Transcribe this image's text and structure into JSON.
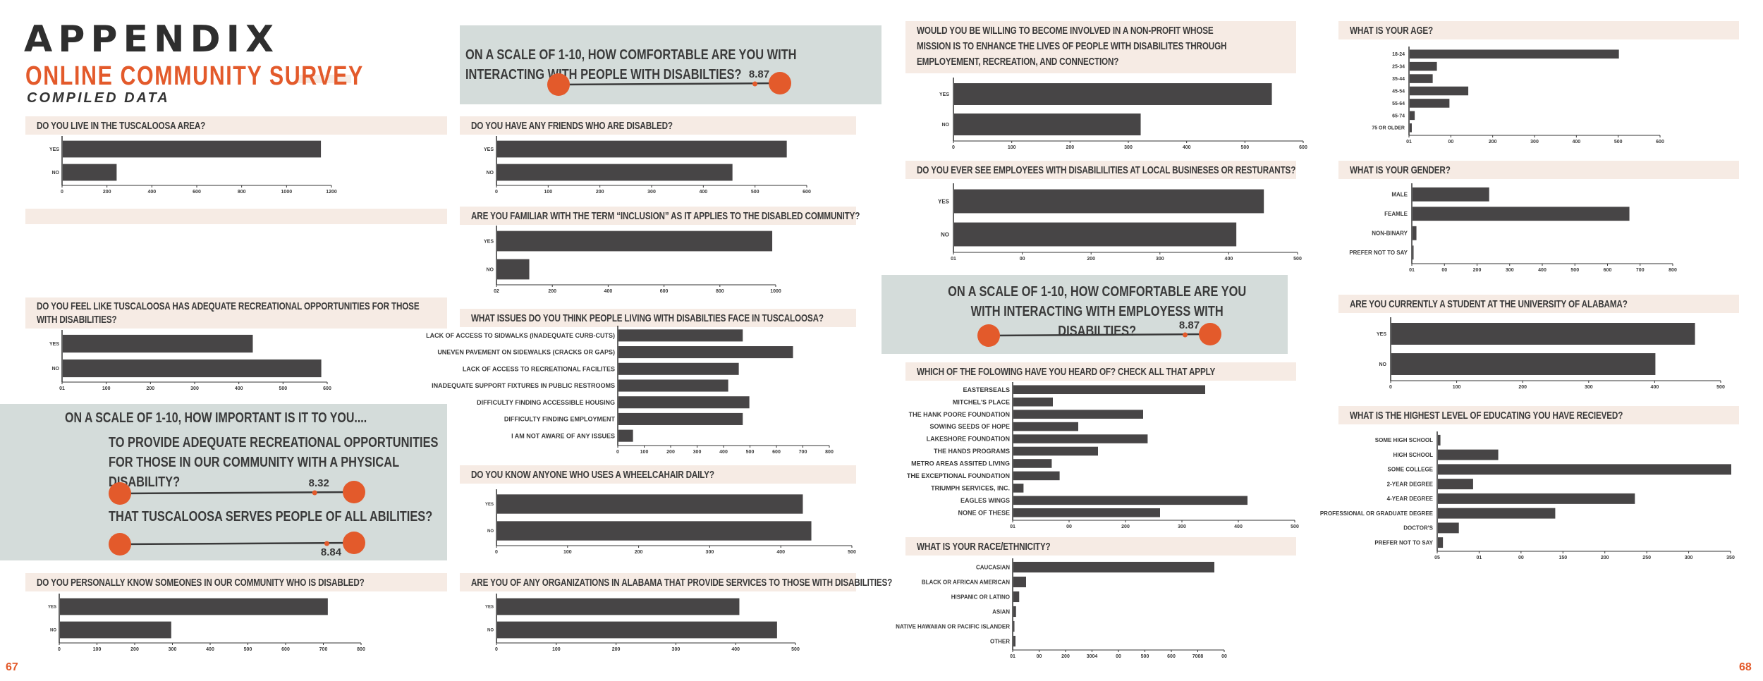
{
  "header": {
    "title": "APPENDIX",
    "subtitle": "ONLINE COMMUNITY SURVEY",
    "compiled": "COMPILED DATA"
  },
  "pages": {
    "left": "67",
    "right": "68"
  },
  "colors": {
    "accent": "#e35a2b",
    "bar": "#474546",
    "band": "#f6ebe4",
    "panel": "#d4dcda"
  },
  "scales": {
    "people_disabilities": {
      "question": "ON A SCALE OF 1-10, HOW COMFORTABLE ARE YOU WITH INTERACTING WITH PEOPLE WITH DISABILTIES?",
      "value": "8.87",
      "fraction": 0.887
    },
    "importance": {
      "heading": "ON A SCALE OF 1-10, HOW IMPORTANT IS IT TO YOU....",
      "q1": "TO PROVIDE ADEQUATE RECREATIONAL OPPORTUNITIES FOR THOSE IN OUR COMMUNITY WITH A PHYSICAL DISABILITY?",
      "v1": "8.32",
      "f1": 0.832,
      "q2": "THAT TUSCALOOSA SERVES PEOPLE OF ALL ABILITIES?",
      "v2": "8.84",
      "f2": 0.884
    },
    "employees": {
      "question": "ON A SCALE OF 1-10, HOW COMFORTABLE ARE YOU WITH INTERACTING WITH EMPLOYESS WITH DISABILTIES?",
      "value": "8.87",
      "fraction": 0.887
    }
  },
  "chart_data": [
    {
      "id": "tuscaloosa",
      "type": "bar",
      "title": "DO YOU LIVE IN THE TUSCALOOSA AREA?",
      "categories": [
        "YES",
        "NO"
      ],
      "values": [
        1150,
        240
      ],
      "xlim": [
        0,
        1200
      ],
      "ticks": [
        "0",
        "200",
        "400",
        "600",
        "800",
        "1000",
        "1200"
      ]
    },
    {
      "id": "friends",
      "type": "bar",
      "title": "DO YOU HAVE ANY FRIENDS WHO ARE DISABLED?",
      "categories": [
        "YES",
        "NO"
      ],
      "values": [
        560,
        455
      ],
      "xlim": [
        0,
        600
      ],
      "ticks": [
        "0",
        "100",
        "200",
        "300",
        "400",
        "500",
        "600"
      ]
    },
    {
      "id": "inclusion",
      "type": "bar",
      "title": "ARE YOU FAMILIAR WITH THE TERM  “INCLUSION” AS IT APPLIES TO THE DISABLED COMMUNITY?",
      "categories": [
        "YES",
        "NO"
      ],
      "values": [
        985,
        115
      ],
      "xlim": [
        0,
        1000
      ],
      "ticks": [
        "02",
        "200",
        "400",
        "600",
        "800",
        "1000"
      ]
    },
    {
      "id": "recreation",
      "type": "bar",
      "title": "DO YOU FEEL LIKE TUSCALOOSA HAS ADEQUATE RECREATIONAL OPPORTUNITIES FOR THOSE WITH DISABILITIES?",
      "categories": [
        "YES",
        "NO"
      ],
      "values": [
        430,
        585
      ],
      "xlim": [
        0,
        600
      ],
      "ticks": [
        "01",
        "100",
        "200",
        "300",
        "400",
        "500",
        "600"
      ]
    },
    {
      "id": "issues",
      "type": "bar",
      "title": "WHAT ISSUES DO YOU THINK PEOPLE LIVING WITH DISABILTIES FACE IN TUSCALOOSA?",
      "categories": [
        "LACK OF ACCESS TO SIDWALKS (INADEQUATE CURB-CUTS)",
        "UNEVEN PAVEMENT ON SIDEWALKS (CRACKS OR GAPS)",
        "LACK OF ACCESS TO RECREATIONAL FACILITES",
        "INADEQUATE SUPPORT FIXTURES IN PUBLIC RESTROOMS",
        "DIFFICULTY FINDING ACCESSIBLE HOUSING",
        "DIFFICULTY FINDING EMPLOYMENT",
        "I AM NOT AWARE OF ANY ISSUES"
      ],
      "values": [
        470,
        660,
        455,
        415,
        495,
        470,
        55
      ],
      "xlim": [
        0,
        800
      ],
      "ticks": [
        "0",
        "100",
        "200",
        "300",
        "400",
        "500",
        "600",
        "700",
        "800"
      ]
    },
    {
      "id": "wheelchair",
      "type": "bar",
      "title": "DO YOU KNOW ANYONE WHO USES A WHEELCAHAIR DAILY?",
      "categories": [
        "YES",
        "NO"
      ],
      "values": [
        430,
        442
      ],
      "xlim": [
        0,
        500
      ],
      "ticks": [
        "0",
        "100",
        "200",
        "300",
        "400",
        "500"
      ]
    },
    {
      "id": "know_disabled",
      "type": "bar",
      "title": "DO YOU PERSONALLY KNOW SOMEONES IN OUR COMMUNITY WHO IS DISABLED?",
      "categories": [
        "YES",
        "NO"
      ],
      "values": [
        710,
        295
      ],
      "xlim": [
        0,
        800
      ],
      "ticks": [
        "0",
        "100",
        "200",
        "300",
        "400",
        "500",
        "600",
        "700",
        "800"
      ]
    },
    {
      "id": "organizations",
      "type": "bar",
      "title": "ARE YOU OF ANY ORGANIZATIONS IN ALABAMA THAT PROVIDE SERVICES TO THOSE WITH DISABILITIES?",
      "categories": [
        "YES",
        "NO"
      ],
      "values": [
        405,
        468
      ],
      "xlim": [
        0,
        500
      ],
      "ticks": [
        "0",
        "100",
        "200",
        "300",
        "400",
        "500"
      ]
    },
    {
      "id": "nonprofit",
      "type": "bar",
      "title": "WOULD YOU BE WILLING TO BECOME INVOLVED IN A NON-PROFIT WHOSE MISSION IS TO ENHANCE THE LIVES OF PEOPLE WITH DISABILITES THROUGH EMPLOYEMENT, RECREATION, AND CONNECTION?",
      "categories": [
        "YES",
        "NO"
      ],
      "values": [
        545,
        320
      ],
      "xlim": [
        0,
        600
      ],
      "ticks": [
        "0",
        "100",
        "200",
        "300",
        "400",
        "500",
        "600"
      ]
    },
    {
      "id": "employees_local",
      "type": "bar",
      "title": "DO YOU EVER SEE EMPLOYEES WITH DISABILILITIES AT LOCAL BUSINESES OR RESTURANTS?",
      "categories": [
        "YES",
        "NO"
      ],
      "values": [
        450,
        410
      ],
      "xlim": [
        0,
        500
      ],
      "ticks": [
        "01",
        "00",
        "200",
        "300",
        "400",
        "500"
      ]
    },
    {
      "id": "heard_of",
      "type": "bar",
      "title": "WHICH OF THE FOLOWING HAVE YOU HEARD OF? CHECK ALL THAT APPLY",
      "categories": [
        "EASTERSEALS",
        "MITCHEL'S PLACE",
        "THE HANK POORE FOUNDATION",
        "SOWING SEEDS OF HOPE",
        "LAKESHORE FOUNDATION",
        "THE HANDS PROGRAMS",
        "METRO AREAS ASSITED LIVING",
        "THE EXCEPTIONAL FOUNDATION",
        "TRIUMPH SERVICES, INC.",
        "EAGLES WINGS",
        "NONE OF THESE"
      ],
      "values": [
        340,
        70,
        230,
        115,
        238,
        150,
        68,
        82,
        18,
        415,
        260
      ],
      "xlim": [
        0,
        500
      ],
      "ticks": [
        "01",
        "00",
        "200",
        "300",
        "400",
        "500"
      ]
    },
    {
      "id": "race",
      "type": "bar",
      "title": "WHAT IS YOUR RACE/ETHNICITY?",
      "categories": [
        "CAUCASIAN",
        "BLACK OR AFRICAN AMERICAN",
        "HISPANIC OR LATINO",
        "ASIAN",
        "NATIVE HAWAIIAN OR PACIFIC ISLANDER",
        "OTHER"
      ],
      "values": [
        760,
        48,
        22,
        10,
        4,
        8
      ],
      "xlim": [
        0,
        800
      ],
      "ticks": [
        "01",
        "00",
        "200",
        "3004",
        "00",
        "500",
        "600",
        "7008",
        "00"
      ]
    },
    {
      "id": "age",
      "type": "bar",
      "title": "WHAT IS YOUR AGE?",
      "categories": [
        "18-24",
        "25-34",
        "35-44",
        "45-54",
        "55-64",
        "65-74",
        "75 OR OLDER"
      ],
      "values": [
        500,
        65,
        55,
        140,
        95,
        12,
        5
      ],
      "xlim": [
        0,
        600
      ],
      "ticks": [
        "01",
        "00",
        "200",
        "300",
        "400",
        "500",
        "600"
      ]
    },
    {
      "id": "gender",
      "type": "bar",
      "title": "WHAT IS YOUR GENDER?",
      "categories": [
        "MALE",
        "FEAMLE",
        "NON-BINARY",
        "PREFER NOT TO SAY"
      ],
      "values": [
        235,
        665,
        12,
        3
      ],
      "xlim": [
        0,
        800
      ],
      "ticks": [
        "01",
        "00",
        "200",
        "300",
        "400",
        "500",
        "600",
        "700",
        "800"
      ]
    },
    {
      "id": "student",
      "type": "bar",
      "title": "ARE YOU CURRENTLY A STUDENT AT THE UNIVERSITY OF ALABAMA?",
      "categories": [
        "YES",
        "NO"
      ],
      "values": [
        460,
        400
      ],
      "xlim": [
        0,
        500
      ],
      "ticks": [
        "0",
        "100",
        "200",
        "300",
        "400",
        "500"
      ]
    },
    {
      "id": "education",
      "type": "bar",
      "title": "WHAT IS THE HIGHEST LEVEL OF EDUCATING YOU HAVE RECIEVED?",
      "categories": [
        "SOME HIGH SCHOOL",
        "HIGH SCHOOL",
        "SOME COLLEGE",
        "2-YEAR DEGREE",
        "4-YEAR DEGREE",
        "PROFESSIONAL OR GRADUATE DEGREE",
        "DOCTOR'S",
        "PREFER NOT TO SAY"
      ],
      "values": [
        3,
        72,
        350,
        42,
        235,
        140,
        25,
        6
      ],
      "xlim": [
        0,
        350
      ],
      "ticks": [
        "05",
        "01",
        "00",
        "150",
        "200",
        "250",
        "300",
        "350"
      ]
    }
  ]
}
